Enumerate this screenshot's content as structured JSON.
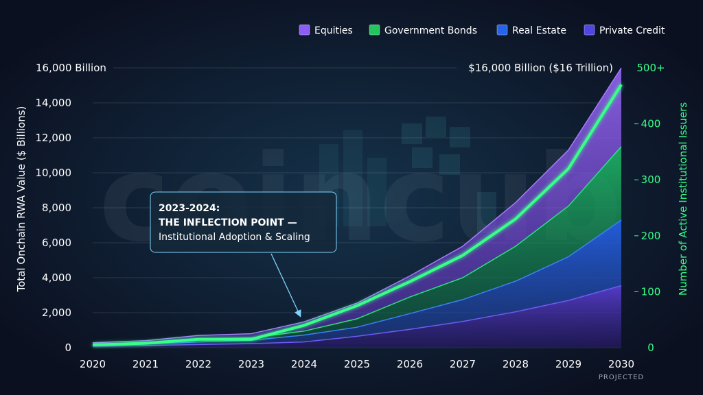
{
  "watermark": "coincub",
  "legend": [
    {
      "label": "Equities",
      "color": "#8b5cf6"
    },
    {
      "label": "Government Bonds",
      "color": "#22c55e"
    },
    {
      "label": "Real Estate",
      "color": "#2563eb"
    },
    {
      "label": "Private Credit",
      "color": "#4f46e5"
    }
  ],
  "annotation": {
    "line1": "2023-2024:",
    "line2": "THE INFLECTION POINT —",
    "line3": "Institutional Adoption & Scaling"
  },
  "top_label_left": "16,000 Billion",
  "top_label_right": "$16,000 Billion ($16 Trillion)",
  "projected_label": "PROJECTED",
  "colors": {
    "background": "#0b1020",
    "accent_green": "#39ff88",
    "equities": "#8b5cf6",
    "bonds": "#22c55e",
    "real_estate": "#2563eb",
    "private_credit": "#4f46e5"
  },
  "chart_data": {
    "type": "area",
    "x": [
      "2020",
      "2021",
      "2022",
      "2023",
      "2024",
      "2025",
      "2026",
      "2027",
      "2028",
      "2029",
      "2030"
    ],
    "ylabel": "Total Onchain RWA Value ($ Billions)",
    "ylabel_right": "Number of Active Institutional Issuers",
    "ylim": [
      0,
      16000
    ],
    "yticks": [
      "0",
      "2,000",
      "4,000",
      "6,000",
      "8,000",
      "10,000",
      "12,000",
      "14,000"
    ],
    "ylim_right": [
      0,
      500
    ],
    "yticks_right": [
      "0",
      "100",
      "200",
      "300",
      "400",
      "500+"
    ],
    "stacked_series": [
      {
        "name": "Private Credit",
        "values": [
          80,
          120,
          180,
          230,
          330,
          650,
          1050,
          1500,
          2050,
          2700,
          3550
        ]
      },
      {
        "name": "Real Estate",
        "values": [
          150,
          200,
          330,
          420,
          720,
          1170,
          1950,
          2750,
          3800,
          5200,
          7300
        ]
      },
      {
        "name": "Government Bonds",
        "values": [
          200,
          280,
          500,
          560,
          950,
          1650,
          2900,
          4000,
          5800,
          8100,
          11500
        ]
      },
      {
        "name": "Equities",
        "values": [
          280,
          400,
          700,
          800,
          1480,
          2550,
          4100,
          5800,
          8300,
          11300,
          16000
        ]
      }
    ],
    "issuers": {
      "name": "Number of Active Institutional Issuers",
      "values": [
        5,
        8,
        15,
        15,
        40,
        75,
        118,
        165,
        230,
        320,
        470
      ]
    }
  }
}
